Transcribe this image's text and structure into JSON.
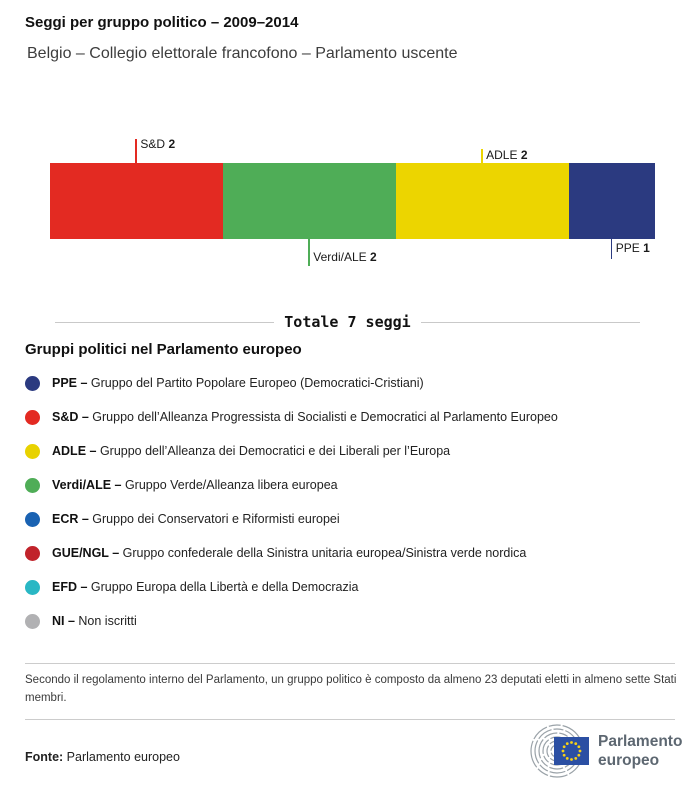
{
  "header": {
    "title": "Seggi per gruppo politico – 2009–2014",
    "subtitle": "Belgio – Collegio elettorale francofono – Parlamento uscente"
  },
  "chart_data": {
    "type": "bar",
    "orientation": "horizontal_stacked",
    "title": "Seggi per gruppo politico – 2009–2014",
    "subtitle": "Belgio – Collegio elettorale francofono – Parlamento uscente",
    "total_seats": 7,
    "total_label": "Totale 7 seggi",
    "categories": [
      "S&D",
      "Verdi/ALE",
      "ADLE",
      "PPE"
    ],
    "values": [
      2,
      2,
      2,
      1
    ],
    "segments": [
      {
        "group": "S&D",
        "seats": 2,
        "color": "#e32a22",
        "label_position": "above"
      },
      {
        "group": "Verdi/ALE",
        "seats": 2,
        "color": "#4fad57",
        "label_position": "below"
      },
      {
        "group": "ADLE",
        "seats": 2,
        "color": "#ecd500",
        "label_position": "above"
      },
      {
        "group": "PPE",
        "seats": 1,
        "color": "#2b3a80",
        "label_position": "below"
      }
    ]
  },
  "legend": {
    "heading": "Gruppi politici nel Parlamento europeo",
    "separator": "–",
    "items": [
      {
        "abbr": "PPE",
        "desc": "Gruppo del Partito Popolare Europeo (Democratici-Cristiani)",
        "color": "#2b3a80"
      },
      {
        "abbr": "S&D",
        "desc": "Gruppo dell’Alleanza Progressista di Socialisti e Democratici al Parlamento Europeo",
        "color": "#e32a22"
      },
      {
        "abbr": "ADLE",
        "desc": "Gruppo dell’Alleanza dei Democratici e dei Liberali per l’Europa",
        "color": "#e8d200"
      },
      {
        "abbr": "Verdi/ALE",
        "desc": "Gruppo Verde/Alleanza libera europea",
        "color": "#4fad57"
      },
      {
        "abbr": "ECR",
        "desc": "Gruppo dei Conservatori e Riformisti europei",
        "color": "#1a62b2"
      },
      {
        "abbr": "GUE/NGL",
        "desc": "Gruppo confederale della Sinistra unitaria europea/Sinistra verde nordica",
        "color": "#c1232b"
      },
      {
        "abbr": "EFD",
        "desc": "Gruppo Europa della Libertà e della Democrazia",
        "color": "#29b7c4"
      },
      {
        "abbr": "NI",
        "desc": "Non iscritti",
        "color": "#b1b1b3"
      }
    ]
  },
  "footnote": "Secondo il regolamento interno del Parlamento, un gruppo politico è composto da almeno 23 deputati eletti in almeno sette Stati membri.",
  "footer": {
    "source_label": "Fonte:",
    "source_value": "Parlamento europeo",
    "logo_line1": "Parlamento",
    "logo_line2": "europeo",
    "flag_color": "#2b4fa3",
    "star_color": "#f7d117"
  }
}
